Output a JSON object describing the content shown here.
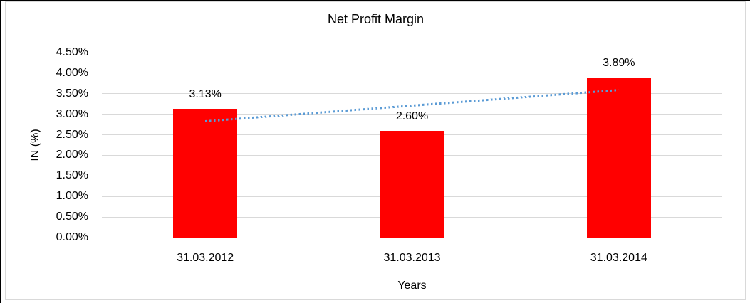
{
  "window": {
    "background_color": "#ffffff",
    "outer_edge_color": "#000000",
    "frame_border_color": "#d9d9d9"
  },
  "chart_data": {
    "type": "bar",
    "title": "Net Profit Margin",
    "xlabel": "Years",
    "ylabel": "IN (%)",
    "categories": [
      "31.03.2012",
      "31.03.2013",
      "31.03.2014"
    ],
    "series": [
      {
        "name": "Net Profit Margin",
        "values": [
          3.13,
          2.6,
          3.89
        ]
      }
    ],
    "data_labels": [
      "3.13%",
      "2.60%",
      "3.89%"
    ],
    "ylim": [
      0,
      4.5
    ],
    "ytick_step": 0.5,
    "ytick_labels": [
      "0.00%",
      "0.50%",
      "1.00%",
      "1.50%",
      "2.00%",
      "2.50%",
      "3.00%",
      "3.50%",
      "4.00%",
      "4.50%"
    ],
    "grid": true,
    "legend": "none",
    "bar_color": "#ff0000",
    "gridline_color": "#d9d9d9",
    "text_color": "#000000",
    "trendline": {
      "style": "dotted",
      "color": "#5b9bd5",
      "start_value": 2.83,
      "end_value": 3.59
    }
  }
}
